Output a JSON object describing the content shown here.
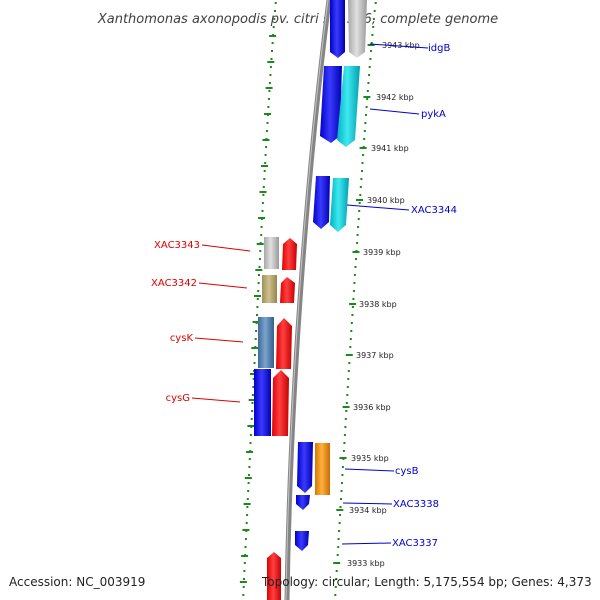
{
  "title": "Xanthomonas axonopodis pv. citri str. 306, complete genome",
  "footer": {
    "accession": "Accession: NC_003919",
    "topology": "Topology: circular; Length: 5,175,554 bp; Genes: 4,373"
  },
  "colors": {
    "forward_label": "#0000cc",
    "reverse_label": "#dd0000",
    "backbone": "#808080",
    "scale_dots": "#1a8a1a"
  },
  "ticks": [
    "3943 kbp",
    "3942 kbp",
    "3941 kbp",
    "3940 kbp",
    "3939 kbp",
    "3938 kbp",
    "3937 kbp",
    "3936 kbp",
    "3935 kbp",
    "3934 kbp",
    "3933 kbp"
  ],
  "genes_forward": [
    {
      "label": "idgB",
      "feature_color": "#c0c0c0"
    },
    {
      "label": "pykA",
      "feature_color": "#00c8d2"
    },
    {
      "label": "XAC3344",
      "feature_color": "#00c8d2"
    },
    {
      "label": "cysB",
      "feature_color": "#f0960a"
    },
    {
      "label": "XAC3338",
      "feature_color": null
    },
    {
      "label": "XAC3337",
      "feature_color": null
    }
  ],
  "genes_reverse": [
    {
      "label": "XAC3343",
      "feature_color": "#c0c0c0"
    },
    {
      "label": "XAC3342",
      "feature_color": "#b8a870"
    },
    {
      "label": "cysK",
      "feature_color": "#4f7fb0"
    },
    {
      "label": "cysG",
      "feature_color": "#0000ee"
    }
  ]
}
